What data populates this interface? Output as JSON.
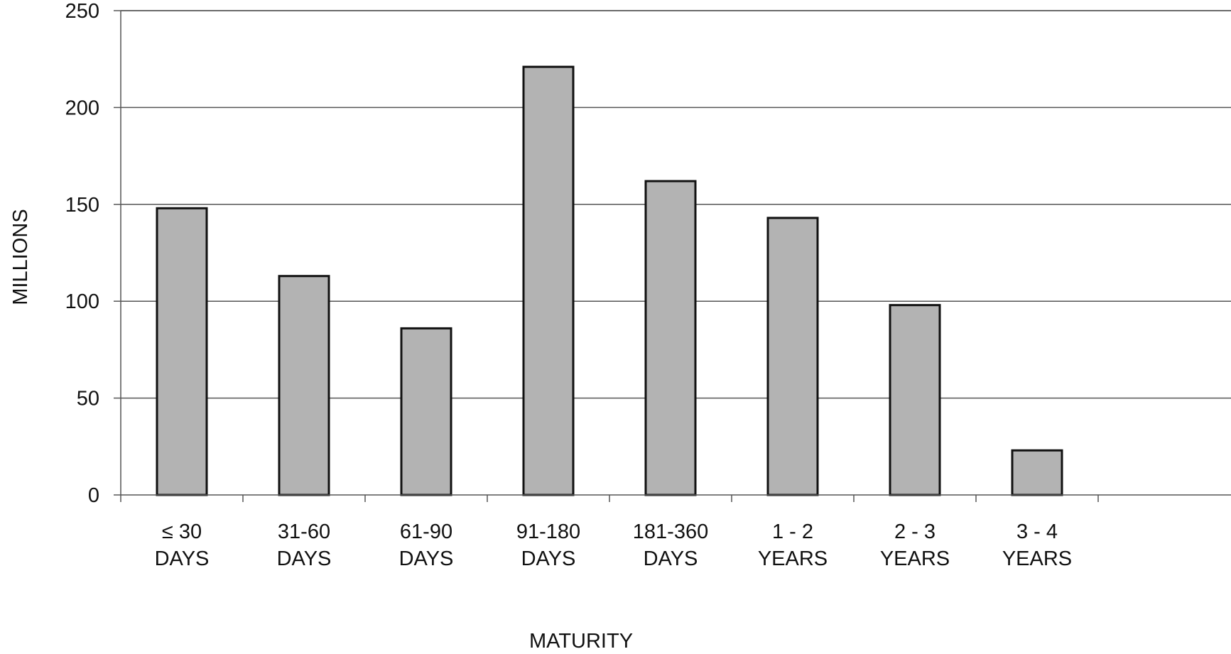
{
  "chart_data": {
    "type": "bar",
    "categories": [
      [
        "≤ 30",
        "DAYS"
      ],
      [
        "31-60",
        "DAYS"
      ],
      [
        "61-90",
        "DAYS"
      ],
      [
        "91-180",
        "DAYS"
      ],
      [
        "181-360",
        "DAYS"
      ],
      [
        "1 - 2",
        "YEARS"
      ],
      [
        "2 - 3",
        "YEARS"
      ],
      [
        "3 - 4",
        "YEARS"
      ]
    ],
    "values": [
      148,
      113,
      86,
      221,
      162,
      143,
      98,
      23
    ],
    "title": "",
    "xlabel": "MATURITY",
    "ylabel": "MILLIONS",
    "ylim": [
      0,
      250
    ],
    "yticks": [
      "0",
      "50",
      "100",
      "150",
      "200",
      "250"
    ],
    "grid": true,
    "colors": {
      "bar_fill": "#b3b3b3",
      "bar_stroke": "#111111",
      "grid": "#555555",
      "axis": "#555555"
    }
  }
}
